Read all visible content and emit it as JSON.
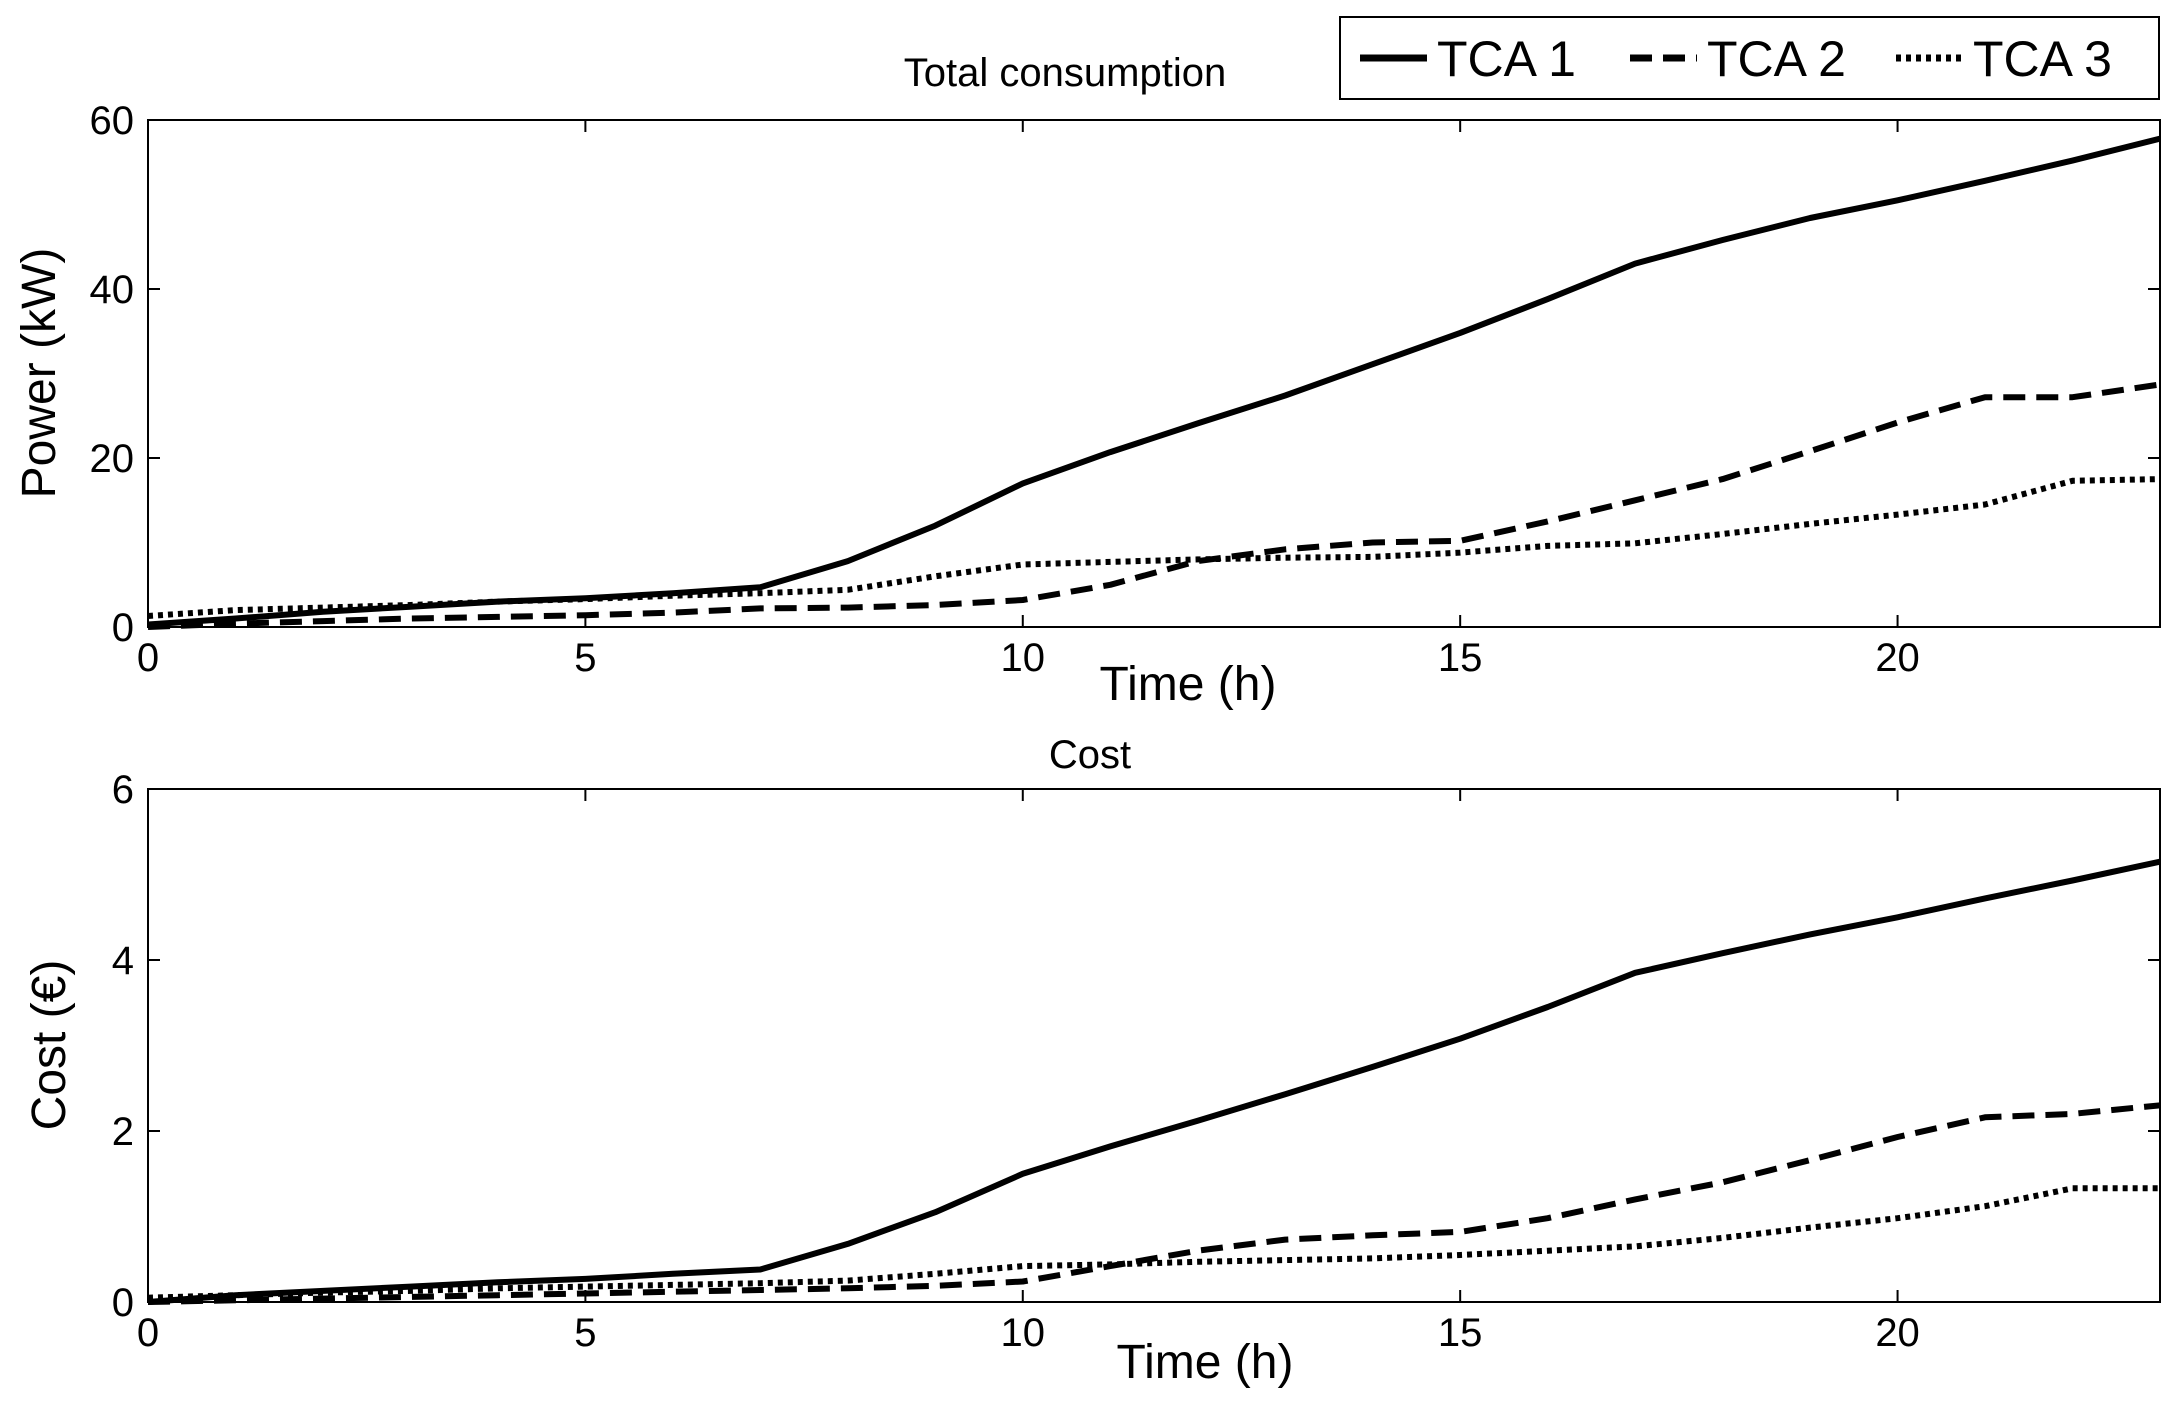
{
  "chart_data": [
    {
      "type": "line",
      "title": "Total consumption",
      "xlabel": "Time (h)",
      "ylabel": "Power (kW)",
      "xlim": [
        0,
        23
      ],
      "ylim": [
        0,
        60
      ],
      "xticks": [
        0,
        5,
        10,
        15,
        20
      ],
      "yticks": [
        0,
        20,
        40,
        60
      ],
      "grid": false,
      "x": [
        0,
        1,
        2,
        3,
        4,
        5,
        6,
        7,
        8,
        9,
        10,
        11,
        12,
        13,
        14,
        15,
        16,
        17,
        18,
        19,
        20,
        21,
        22,
        23
      ],
      "series": [
        {
          "name": "TCA 1",
          "style": "solid",
          "values": [
            0.3,
            1,
            1.8,
            2.4,
            3,
            3.4,
            4,
            4.7,
            7.8,
            12,
            17,
            20.7,
            24.1,
            27.4,
            31.1,
            34.8,
            38.8,
            43,
            45.8,
            48.4,
            50.5,
            52.8,
            55.2,
            57.8
          ]
        },
        {
          "name": "TCA 2",
          "style": "dashed",
          "values": [
            0,
            0.4,
            0.7,
            1,
            1.2,
            1.4,
            1.7,
            2.2,
            2.3,
            2.6,
            3.2,
            5,
            7.8,
            9.2,
            10,
            10.2,
            12.5,
            15,
            17.5,
            20.8,
            24.2,
            27.2,
            27.2,
            28.7
          ]
        },
        {
          "name": "TCA 3",
          "style": "dotted",
          "values": [
            1.3,
            2,
            2.3,
            2.6,
            3,
            3.3,
            3.7,
            4,
            4.4,
            6,
            7.4,
            7.7,
            8,
            8.2,
            8.3,
            8.8,
            9.6,
            9.9,
            11,
            12.2,
            13.3,
            14.5,
            17.3,
            17.5
          ]
        }
      ]
    },
    {
      "type": "line",
      "title": "Cost",
      "xlabel": "Time (h)",
      "ylabel": "Cost (€)",
      "xlim": [
        0,
        23
      ],
      "ylim": [
        0,
        6
      ],
      "xticks": [
        0,
        5,
        10,
        15,
        20
      ],
      "yticks": [
        0,
        2,
        4,
        6
      ],
      "grid": false,
      "x": [
        0,
        1,
        2,
        3,
        4,
        5,
        6,
        7,
        8,
        9,
        10,
        11,
        12,
        13,
        14,
        15,
        16,
        17,
        18,
        19,
        20,
        21,
        22,
        23
      ],
      "series": [
        {
          "name": "TCA 1",
          "style": "solid",
          "values": [
            0,
            0.08,
            0.13,
            0.18,
            0.23,
            0.27,
            0.33,
            0.38,
            0.68,
            1.05,
            1.5,
            1.82,
            2.12,
            2.43,
            2.75,
            3.08,
            3.45,
            3.85,
            4.08,
            4.3,
            4.5,
            4.72,
            4.93,
            5.15
          ]
        },
        {
          "name": "TCA 2",
          "style": "dashed",
          "values": [
            0,
            0.02,
            0.04,
            0.06,
            0.08,
            0.1,
            0.12,
            0.14,
            0.16,
            0.19,
            0.24,
            0.42,
            0.6,
            0.73,
            0.78,
            0.82,
            0.98,
            1.2,
            1.4,
            1.66,
            1.93,
            2.16,
            2.2,
            2.3
          ]
        },
        {
          "name": "TCA 3",
          "style": "dotted",
          "values": [
            0.05,
            0.08,
            0.11,
            0.13,
            0.16,
            0.18,
            0.2,
            0.22,
            0.25,
            0.33,
            0.42,
            0.44,
            0.47,
            0.49,
            0.51,
            0.55,
            0.6,
            0.65,
            0.75,
            0.87,
            0.98,
            1.12,
            1.33,
            1.33
          ]
        }
      ]
    }
  ],
  "legend": {
    "placement": "top-right",
    "entries": [
      {
        "label": "TCA 1",
        "style": "solid"
      },
      {
        "label": "TCA 2",
        "style": "dashed"
      },
      {
        "label": "TCA 3",
        "style": "dotted"
      }
    ]
  },
  "colors": {
    "line": "#000000",
    "background": "#ffffff"
  }
}
